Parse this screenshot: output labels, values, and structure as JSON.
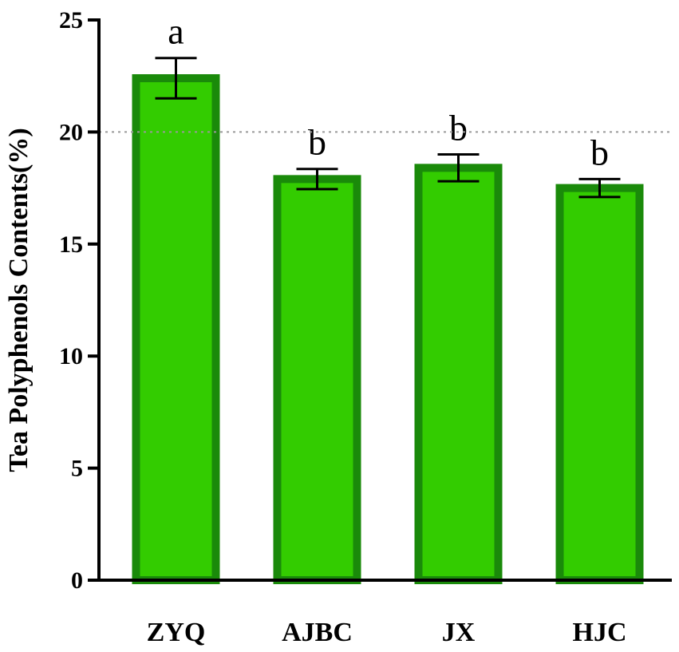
{
  "chart_data": {
    "type": "bar",
    "categories": [
      "ZYQ",
      "AJBC",
      "JX",
      "HJC"
    ],
    "values": [
      22.4,
      17.9,
      18.4,
      17.5
    ],
    "errors": [
      0.9,
      0.45,
      0.6,
      0.4
    ],
    "significance": [
      "a",
      "b",
      "b",
      "b"
    ],
    "ylabel": "Tea Polyphenols Contents(%)",
    "xlabel": "",
    "ylim": [
      0,
      25
    ],
    "yticks": [
      0,
      5,
      10,
      15,
      20,
      25
    ],
    "reference_line": 20,
    "grid": false,
    "colors": {
      "bar_fill": "#33cc00",
      "bar_edge": "#1a8a0a",
      "axis": "#000000",
      "reference_line": "#999999"
    }
  }
}
